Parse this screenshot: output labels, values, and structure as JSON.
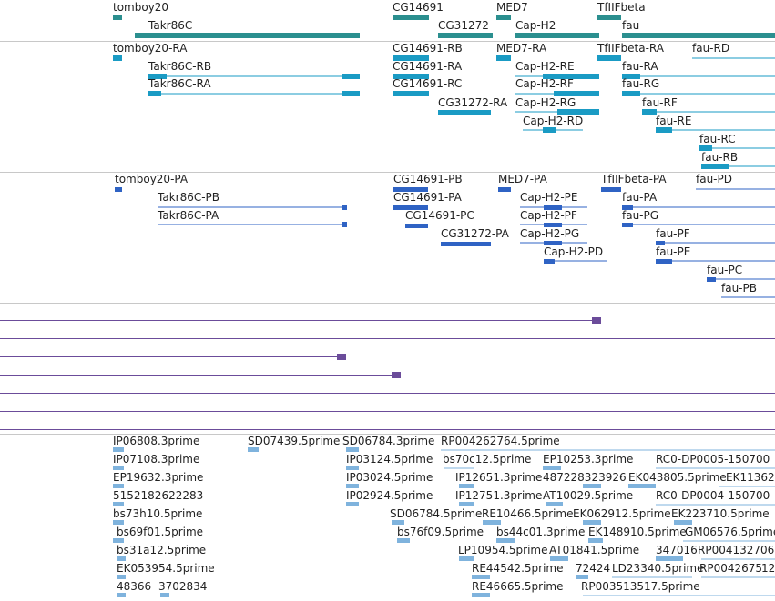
{
  "colors": {
    "gene": "#2b8f8f",
    "transcript_rna": "#1a9bc4",
    "protein": "#2f63c4",
    "read": "#6b4c9a",
    "est": "#7fb3dd",
    "separator": "#c8c8c8"
  },
  "genes": [
    {
      "label": "tomboy20"
    },
    {
      "label": "Takr86C"
    },
    {
      "label": "CG14691"
    },
    {
      "label": "CG31272"
    },
    {
      "label": "MED7"
    },
    {
      "label": "Cap-H2"
    },
    {
      "label": "TfIIFbeta"
    },
    {
      "label": "fau"
    }
  ],
  "rna": [
    {
      "label": "tomboy20-RA"
    },
    {
      "label": "Takr86C-RB"
    },
    {
      "label": "Takr86C-RA"
    },
    {
      "label": "CG14691-RB"
    },
    {
      "label": "CG14691-RA"
    },
    {
      "label": "CG14691-RC"
    },
    {
      "label": "CG31272-RA"
    },
    {
      "label": "MED7-RA"
    },
    {
      "label": "Cap-H2-RE"
    },
    {
      "label": "Cap-H2-RF"
    },
    {
      "label": "Cap-H2-RG"
    },
    {
      "label": "Cap-H2-RD"
    },
    {
      "label": "TfIIFbeta-RA"
    },
    {
      "label": "fau-RD"
    },
    {
      "label": "fau-RA"
    },
    {
      "label": "fau-RG"
    },
    {
      "label": "fau-RF"
    },
    {
      "label": "fau-RE"
    },
    {
      "label": "fau-RC"
    },
    {
      "label": "fau-RB"
    }
  ],
  "proteins": [
    {
      "label": "tomboy20-PA"
    },
    {
      "label": "Takr86C-PB"
    },
    {
      "label": "Takr86C-PA"
    },
    {
      "label": "CG14691-PB"
    },
    {
      "label": "CG14691-PA"
    },
    {
      "label": "CG14691-PC"
    },
    {
      "label": "CG31272-PA"
    },
    {
      "label": "MED7-PA"
    },
    {
      "label": "Cap-H2-PE"
    },
    {
      "label": "Cap-H2-PF"
    },
    {
      "label": "Cap-H2-PG"
    },
    {
      "label": "Cap-H2-PD"
    },
    {
      "label": "TfIIFbeta-PA"
    },
    {
      "label": "fau-PD"
    },
    {
      "label": "fau-PA"
    },
    {
      "label": "fau-PG"
    },
    {
      "label": "fau-PF"
    },
    {
      "label": "fau-PE"
    },
    {
      "label": "fau-PC"
    },
    {
      "label": "fau-PB"
    }
  ],
  "ests": [
    {
      "label": "IP06808.3prime"
    },
    {
      "label": "SD07439.5prime"
    },
    {
      "label": "SD06784.3prime"
    },
    {
      "label": "RP004262764.5prime"
    },
    {
      "label": "IP07108.3prime"
    },
    {
      "label": "IP03124.5prime"
    },
    {
      "label": "bs70c12.5prime"
    },
    {
      "label": "EP10253.3prime"
    },
    {
      "label": "RC0-DP0005-150700"
    },
    {
      "label": "EP19632.3prime"
    },
    {
      "label": "IP03024.5prime"
    },
    {
      "label": "IP12651.3prime"
    },
    {
      "label": "487228323926"
    },
    {
      "label": "EK043805.5prime"
    },
    {
      "label": "EK11362"
    },
    {
      "label": "5152182622283"
    },
    {
      "label": "IP02924.5prime"
    },
    {
      "label": "IP12751.3prime"
    },
    {
      "label": "AT10029.5prime"
    },
    {
      "label": "RC0-DP0004-150700"
    },
    {
      "label": "bs73h10.5prime"
    },
    {
      "label": "SD06784.5prime"
    },
    {
      "label": "RE10466.5prime"
    },
    {
      "label": "EK062912.5prime"
    },
    {
      "label": "EK223710.5prime"
    },
    {
      "label": "bs69f01.5prime"
    },
    {
      "label": "bs76f09.5prime"
    },
    {
      "label": "bs44c01.3prime"
    },
    {
      "label": "EK148910.5prime"
    },
    {
      "label": "GM06576.5prime"
    },
    {
      "label": "bs31a12.5prime"
    },
    {
      "label": "LP10954.5prime"
    },
    {
      "label": "AT01841.5prime"
    },
    {
      "label": "347016"
    },
    {
      "label": "RP004132706"
    },
    {
      "label": "EK053954.5prime"
    },
    {
      "label": "RE44542.5prime"
    },
    {
      "label": "72424"
    },
    {
      "label": "LD23340.5prime"
    },
    {
      "label": "RP0042675"
    },
    {
      "label": "12"
    },
    {
      "label": "48366"
    },
    {
      "label": "3702834"
    },
    {
      "label": "RE46665.5prime"
    },
    {
      "label": "RP003513517.5prime"
    }
  ]
}
